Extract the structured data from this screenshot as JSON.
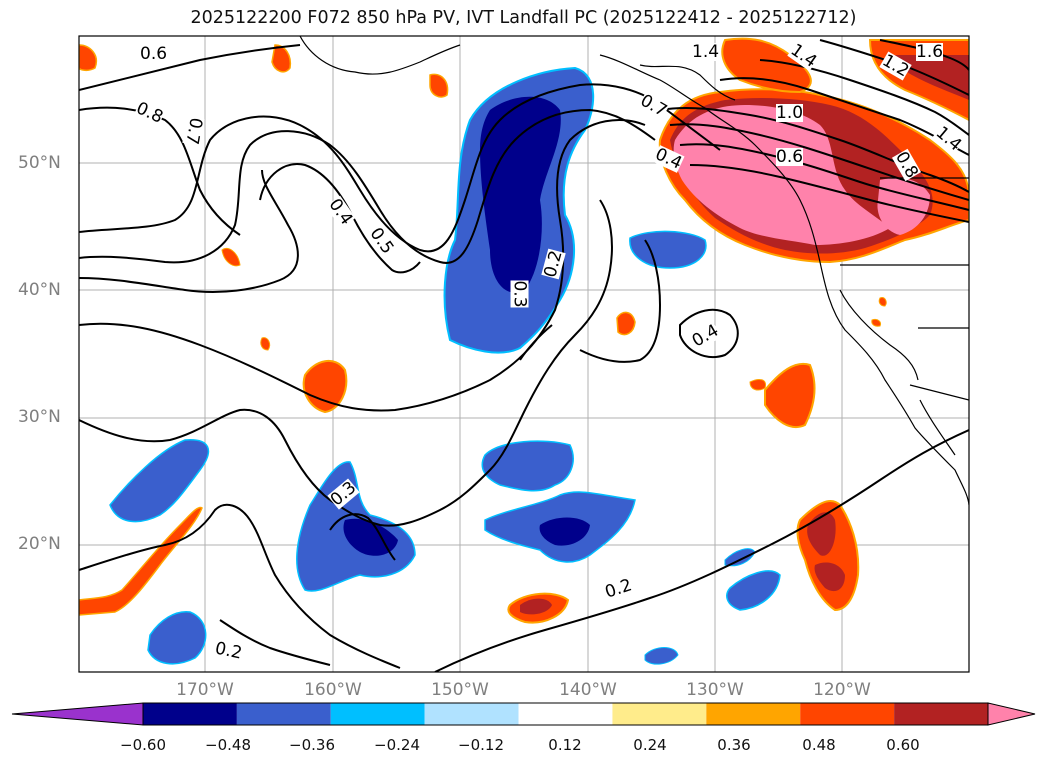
{
  "title": "2025122200 F072 850 hPa PV, IVT Landfall PC (2025122412 - 2025122712)",
  "lat_labels": [
    "50°N",
    "40°N",
    "30°N",
    "20°N"
  ],
  "lon_labels": [
    "170°W",
    "160°W",
    "150°W",
    "140°W",
    "130°W",
    "120°W"
  ],
  "contour_labels": [
    "0.6",
    "0.8",
    "0.7",
    "0.4",
    "0.5",
    "0.3",
    "0.2",
    "0.3",
    "0.2",
    "0.4",
    "0.2",
    "0.4",
    "0.7",
    "1.4",
    "1.4",
    "1.6",
    "1.2",
    "1.0",
    "0.6",
    "1.4",
    "0.8"
  ],
  "colorbar": {
    "ticks": [
      "−0.60",
      "−0.48",
      "−0.36",
      "−0.24",
      "−0.12",
      "0.12",
      "0.24",
      "0.36",
      "0.48",
      "0.60"
    ],
    "colors": [
      "#9a32cd",
      "#00008b",
      "#3a5fcd",
      "#00bfff",
      "#b0e2ff",
      "#ffffff",
      "#ffec8b",
      "#ffa500",
      "#ff4500",
      "#b22222",
      "#ff82ab"
    ]
  }
}
